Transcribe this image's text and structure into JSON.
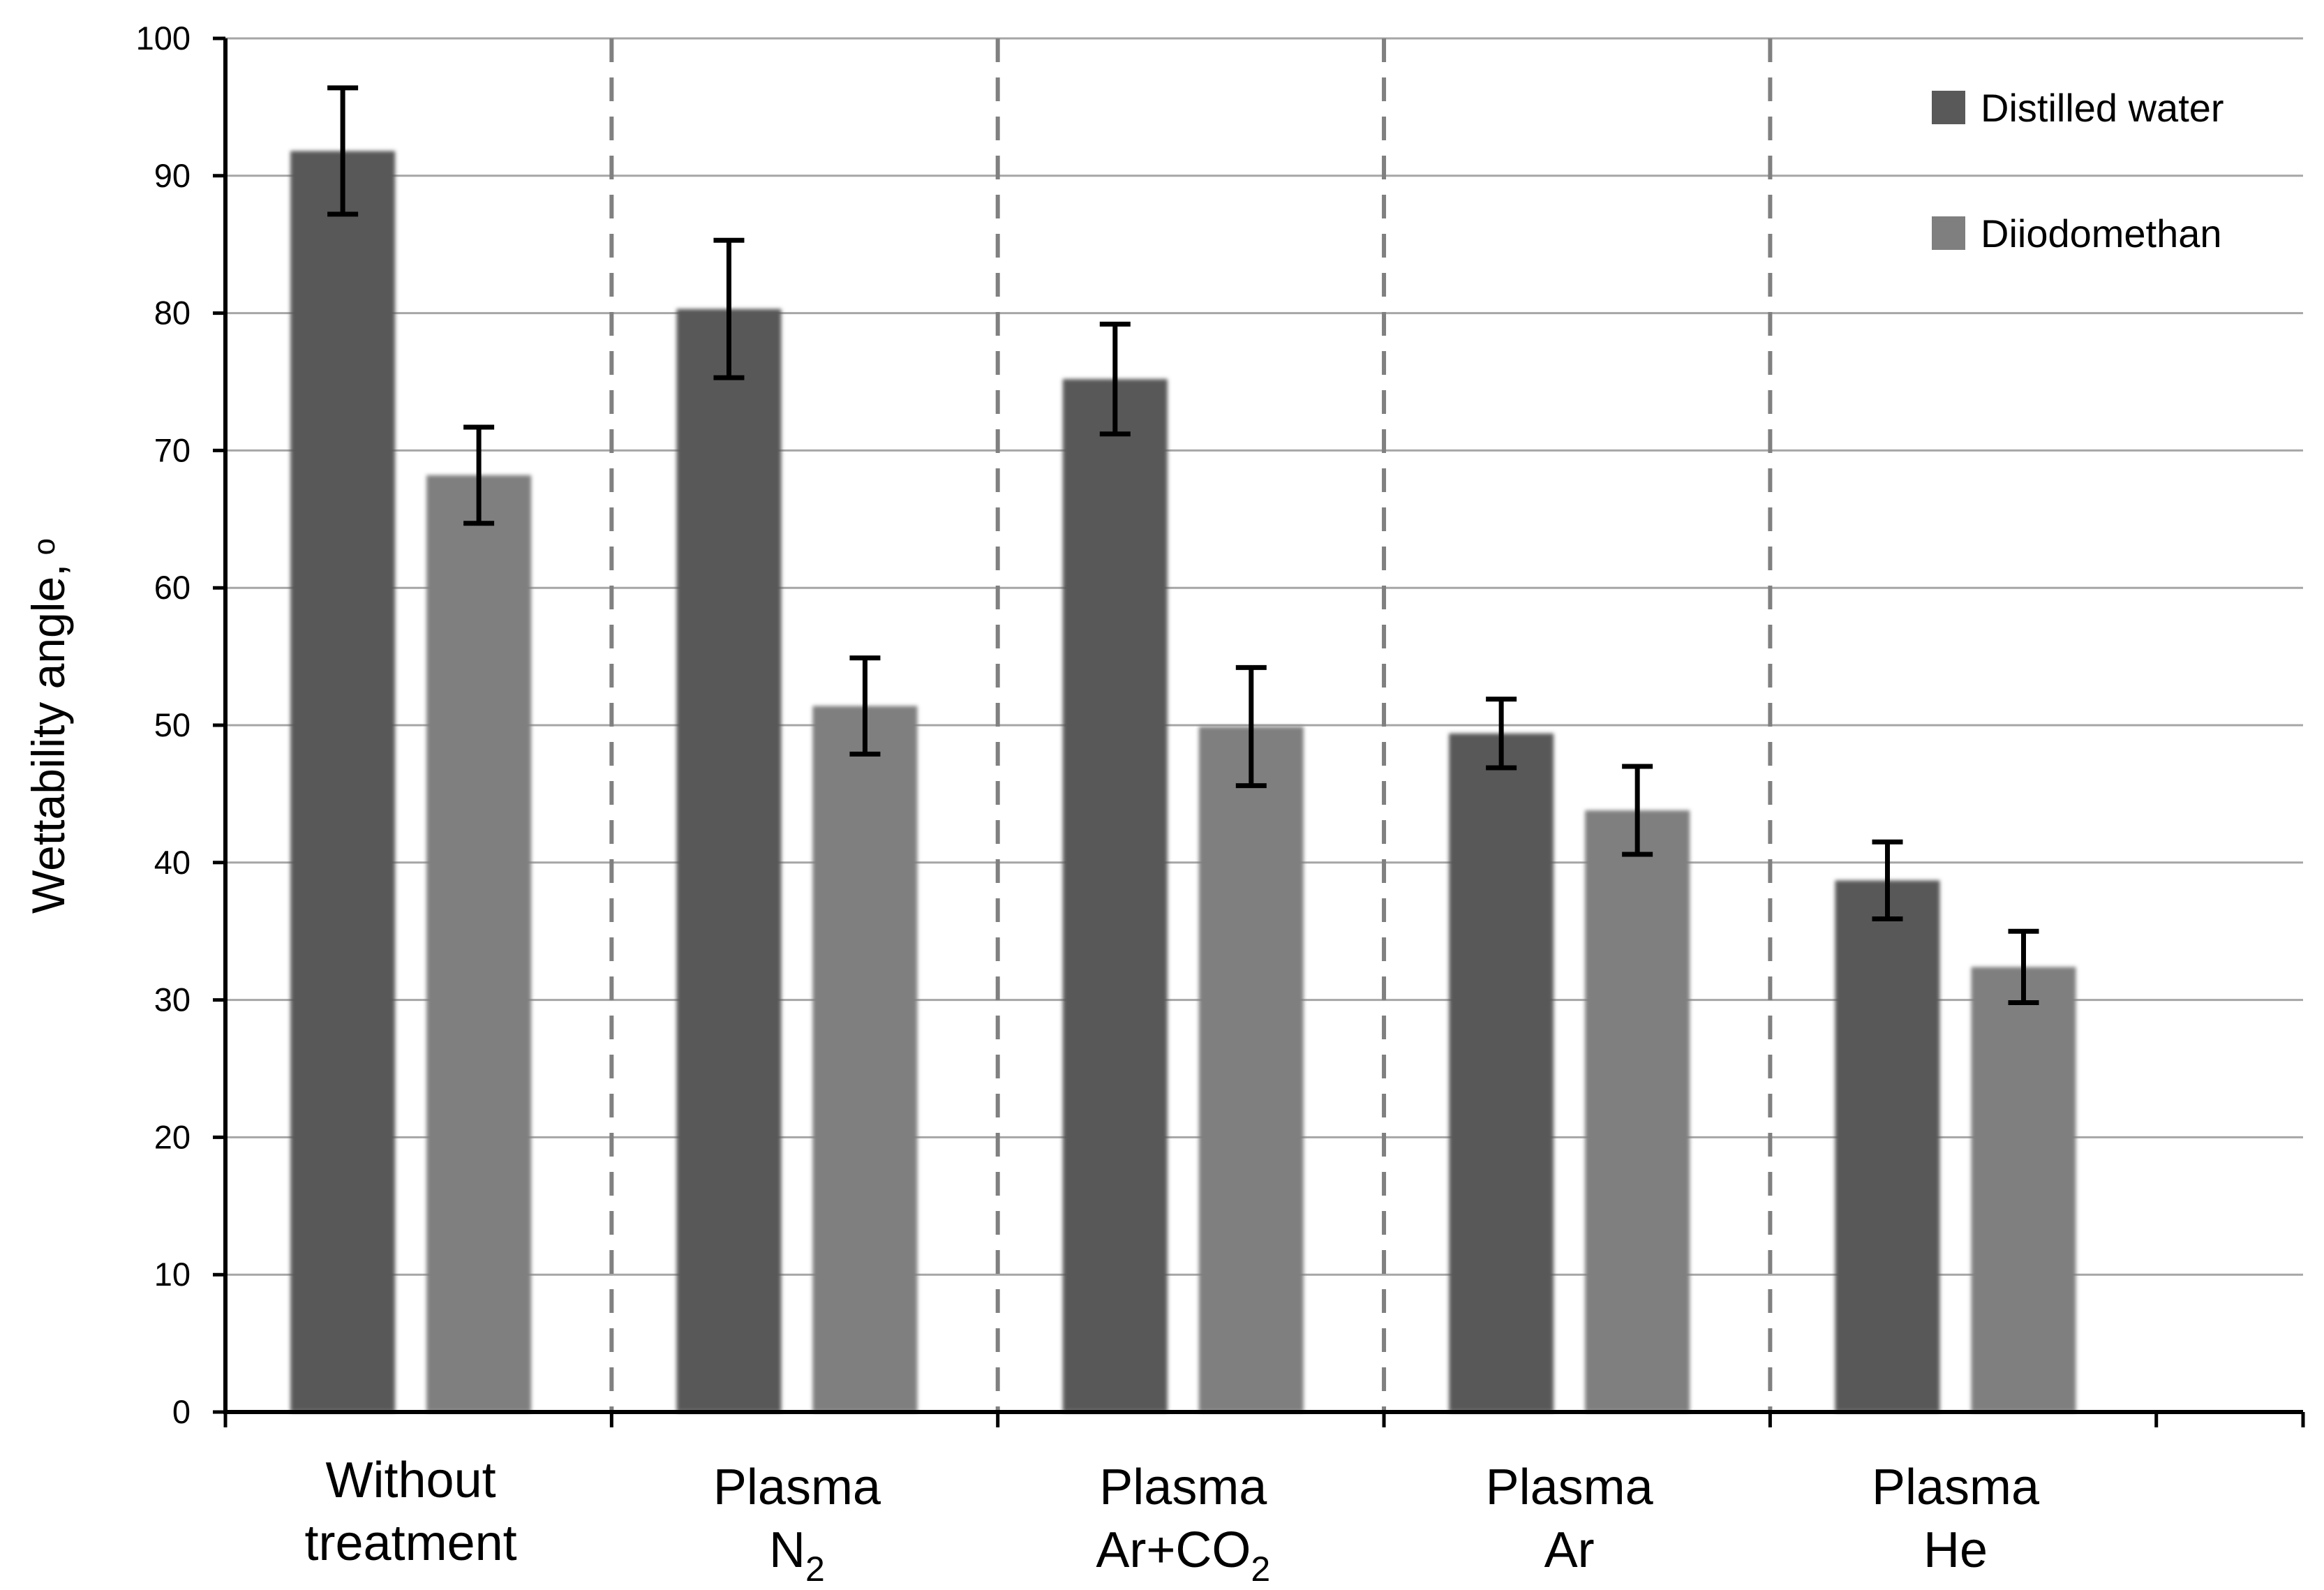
{
  "chart_data": {
    "type": "bar",
    "ylabel": "Wettability angle, o",
    "ylabel_main": "Wettability angle,",
    "ylabel_unit": "o",
    "ylim": [
      0,
      100
    ],
    "yticks": [
      0,
      10,
      20,
      30,
      40,
      50,
      60,
      70,
      80,
      90,
      100
    ],
    "grid": true,
    "legend_position": "top-right",
    "categories": [
      {
        "lines": [
          {
            "text": "Without"
          },
          {
            "text": "treatment"
          }
        ]
      },
      {
        "lines": [
          {
            "text": "Plasma"
          },
          {
            "text": "N",
            "sub": "2"
          }
        ]
      },
      {
        "lines": [
          {
            "text": "Plasma"
          },
          {
            "text": "Ar+CO",
            "sub": "2"
          }
        ]
      },
      {
        "lines": [
          {
            "text": "Plasma"
          },
          {
            "text": "Ar"
          }
        ]
      },
      {
        "lines": [
          {
            "text": "Plasma"
          },
          {
            "text": "He"
          }
        ]
      }
    ],
    "series": [
      {
        "name": "Distilled water",
        "color": "#595959",
        "values": [
          91.8,
          80.3,
          75.2,
          49.4,
          38.7
        ],
        "errors": [
          4.6,
          5.0,
          4.0,
          2.5,
          2.8
        ]
      },
      {
        "name": "Diiodomethan",
        "color": "#7f7f7f",
        "values": [
          68.2,
          51.4,
          49.9,
          43.8,
          32.4
        ],
        "errors": [
          3.5,
          3.5,
          4.3,
          3.2,
          2.6
        ]
      }
    ]
  }
}
